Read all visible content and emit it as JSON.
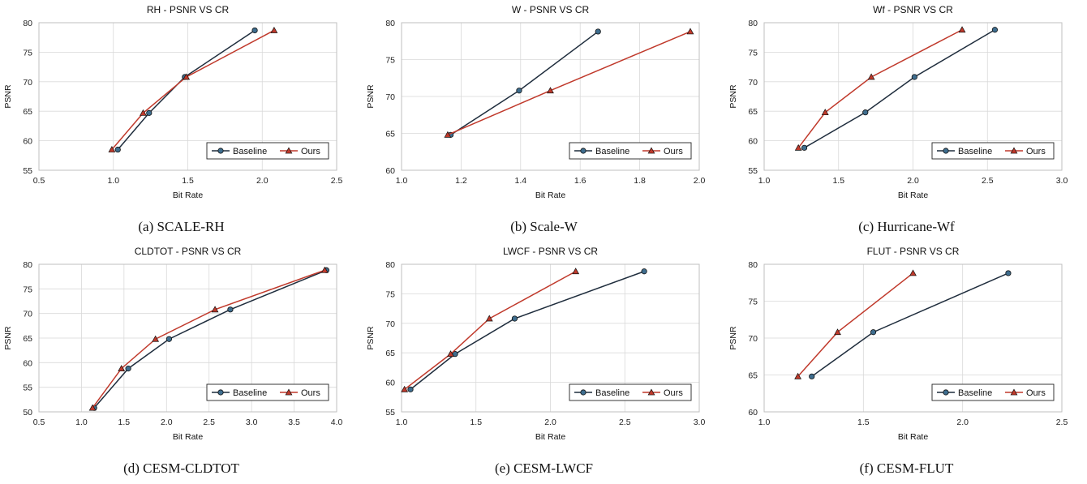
{
  "legend": {
    "baseline": "Baseline",
    "ours": "Ours",
    "baseline_color": "#1f2d3d",
    "ours_color": "#c0392b",
    "baseline_marker": "circle",
    "ours_marker": "triangle"
  },
  "chart_data": [
    {
      "type": "line",
      "title": "RH - PSNR VS CR",
      "caption": "(a) SCALE-RH",
      "xlabel": "Bit Rate",
      "ylabel": "PSNR",
      "xlim": [
        0.5,
        2.5
      ],
      "ylim": [
        55,
        80
      ],
      "xticks": [
        0.5,
        1.0,
        1.5,
        2.0,
        2.5
      ],
      "yticks": [
        55,
        60,
        65,
        70,
        75,
        80
      ],
      "xdec": 1,
      "grid": true,
      "legend_position": "bottom-right",
      "series": [
        {
          "name": "Baseline",
          "x": [
            1.03,
            1.24,
            1.48,
            1.95
          ],
          "y": [
            58.5,
            64.7,
            70.8,
            78.7
          ]
        },
        {
          "name": "Ours",
          "x": [
            0.99,
            1.2,
            1.49,
            2.08
          ],
          "y": [
            58.5,
            64.7,
            70.8,
            78.7
          ]
        }
      ]
    },
    {
      "type": "line",
      "title": "W - PSNR VS CR",
      "caption": "(b) Scale-W",
      "xlabel": "Bit Rate",
      "ylabel": "PSNR",
      "xlim": [
        1.0,
        2.0
      ],
      "ylim": [
        60,
        80
      ],
      "xticks": [
        1.0,
        1.2,
        1.4,
        1.6,
        1.8,
        2.0
      ],
      "yticks": [
        60,
        65,
        70,
        75,
        80
      ],
      "xdec": 1,
      "grid": true,
      "legend_position": "bottom-right",
      "series": [
        {
          "name": "Baseline",
          "x": [
            1.165,
            1.395,
            1.66
          ],
          "y": [
            64.8,
            70.8,
            78.8
          ]
        },
        {
          "name": "Ours",
          "x": [
            1.155,
            1.5,
            1.97
          ],
          "y": [
            64.8,
            70.8,
            78.8
          ]
        }
      ]
    },
    {
      "type": "line",
      "title": "Wf - PSNR VS CR",
      "caption": "(c) Hurricane-Wf",
      "xlabel": "Bit Rate",
      "ylabel": "PSNR",
      "xlim": [
        1.0,
        3.0
      ],
      "ylim": [
        55,
        80
      ],
      "xticks": [
        1.0,
        1.5,
        2.0,
        2.5,
        3.0
      ],
      "yticks": [
        55,
        60,
        65,
        70,
        75,
        80
      ],
      "xdec": 1,
      "grid": true,
      "legend_position": "bottom-right",
      "series": [
        {
          "name": "Baseline",
          "x": [
            1.27,
            1.68,
            2.01,
            2.55
          ],
          "y": [
            58.8,
            64.8,
            70.8,
            78.8
          ]
        },
        {
          "name": "Ours",
          "x": [
            1.23,
            1.41,
            1.72,
            2.33
          ],
          "y": [
            58.8,
            64.8,
            70.8,
            78.8
          ]
        }
      ]
    },
    {
      "type": "line",
      "title": "CLDTOT - PSNR VS CR",
      "caption": "(d) CESM-CLDTOT",
      "xlabel": "Bit Rate",
      "ylabel": "PSNR",
      "xlim": [
        0.5,
        4.0
      ],
      "ylim": [
        50,
        80
      ],
      "xticks": [
        0.5,
        1.0,
        1.5,
        2.0,
        2.5,
        3.0,
        3.5,
        4.0
      ],
      "yticks": [
        50,
        55,
        60,
        65,
        70,
        75,
        80
      ],
      "xdec": 1,
      "grid": true,
      "legend_position": "bottom-right",
      "series": [
        {
          "name": "Baseline",
          "x": [
            1.15,
            1.55,
            2.03,
            2.75,
            3.88
          ],
          "y": [
            50.8,
            58.8,
            64.8,
            70.8,
            78.8
          ]
        },
        {
          "name": "Ours",
          "x": [
            1.13,
            1.47,
            1.87,
            2.57,
            3.86
          ],
          "y": [
            50.8,
            58.8,
            64.8,
            70.8,
            78.8
          ]
        }
      ]
    },
    {
      "type": "line",
      "title": "LWCF - PSNR VS CR",
      "caption": "(e) CESM-LWCF",
      "xlabel": "Bit Rate",
      "ylabel": "PSNR",
      "xlim": [
        1.0,
        3.0
      ],
      "ylim": [
        55,
        80
      ],
      "xticks": [
        1.0,
        1.5,
        2.0,
        2.5,
        3.0
      ],
      "yticks": [
        55,
        60,
        65,
        70,
        75,
        80
      ],
      "xdec": 1,
      "grid": true,
      "legend_position": "bottom-right",
      "series": [
        {
          "name": "Baseline",
          "x": [
            1.06,
            1.36,
            1.76,
            2.63
          ],
          "y": [
            58.8,
            64.8,
            70.8,
            78.8
          ]
        },
        {
          "name": "Ours",
          "x": [
            1.02,
            1.33,
            1.59,
            2.17
          ],
          "y": [
            58.8,
            64.8,
            70.8,
            78.8
          ]
        }
      ]
    },
    {
      "type": "line",
      "title": "FLUT - PSNR VS CR",
      "caption": "(f) CESM-FLUT",
      "xlabel": "Bit Rate",
      "ylabel": "PSNR",
      "xlim": [
        1.0,
        2.5
      ],
      "ylim": [
        60,
        80
      ],
      "xticks": [
        1.0,
        1.5,
        2.0,
        2.5
      ],
      "yticks": [
        60,
        65,
        70,
        75,
        80
      ],
      "xdec": 1,
      "grid": true,
      "legend_position": "bottom-right",
      "series": [
        {
          "name": "Baseline",
          "x": [
            1.24,
            1.55,
            2.23
          ],
          "y": [
            64.8,
            70.8,
            78.8
          ]
        },
        {
          "name": "Ours",
          "x": [
            1.17,
            1.37,
            1.75
          ],
          "y": [
            64.8,
            70.8,
            78.8
          ]
        }
      ]
    }
  ]
}
